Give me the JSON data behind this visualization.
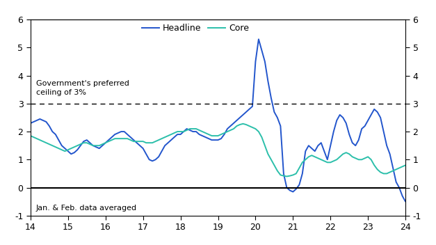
{
  "headline_color": "#2255cc",
  "core_color": "#2bbfaa",
  "dashed_line_y": 3,
  "annotation_ceiling": "Government's preferred\nceiling of 3%",
  "annotation_bottom": "Jan. & Feb. data averaged",
  "xlim": [
    14,
    24
  ],
  "ylim": [
    -1,
    6
  ],
  "yticks": [
    -1,
    0,
    1,
    2,
    3,
    4,
    5,
    6
  ],
  "xticks": [
    14,
    15,
    16,
    17,
    18,
    19,
    20,
    21,
    22,
    23,
    24
  ],
  "legend_labels": [
    "Headline",
    "Core"
  ],
  "headline_x": [
    14.0,
    14.083,
    14.167,
    14.25,
    14.333,
    14.417,
    14.5,
    14.583,
    14.667,
    14.75,
    14.833,
    14.917,
    15.0,
    15.083,
    15.167,
    15.25,
    15.333,
    15.417,
    15.5,
    15.583,
    15.667,
    15.75,
    15.833,
    15.917,
    16.0,
    16.083,
    16.167,
    16.25,
    16.333,
    16.417,
    16.5,
    16.583,
    16.667,
    16.75,
    16.833,
    16.917,
    17.0,
    17.083,
    17.167,
    17.25,
    17.333,
    17.417,
    17.5,
    17.583,
    17.667,
    17.75,
    17.833,
    17.917,
    18.0,
    18.083,
    18.167,
    18.25,
    18.333,
    18.417,
    18.5,
    18.583,
    18.667,
    18.75,
    18.833,
    18.917,
    19.0,
    19.083,
    19.167,
    19.25,
    19.333,
    19.417,
    19.5,
    19.583,
    19.667,
    19.75,
    19.833,
    19.917,
    20.0,
    20.083,
    20.167,
    20.25,
    20.333,
    20.417,
    20.5,
    20.583,
    20.667,
    20.75,
    20.833,
    20.917,
    21.0,
    21.083,
    21.167,
    21.25,
    21.333,
    21.417,
    21.5,
    21.583,
    21.667,
    21.75,
    21.833,
    21.917,
    22.0,
    22.083,
    22.167,
    22.25,
    22.333,
    22.417,
    22.5,
    22.583,
    22.667,
    22.75,
    22.833,
    22.917,
    23.0,
    23.083,
    23.167,
    23.25,
    23.333,
    23.417,
    23.5,
    23.583,
    23.667,
    23.75,
    23.833,
    23.917,
    24.0,
    24.083
  ],
  "headline_y": [
    2.3,
    2.35,
    2.4,
    2.45,
    2.4,
    2.35,
    2.2,
    2.0,
    1.9,
    1.7,
    1.5,
    1.4,
    1.3,
    1.2,
    1.25,
    1.35,
    1.5,
    1.65,
    1.7,
    1.6,
    1.5,
    1.45,
    1.4,
    1.5,
    1.6,
    1.7,
    1.8,
    1.9,
    1.95,
    2.0,
    2.0,
    1.9,
    1.8,
    1.7,
    1.6,
    1.5,
    1.4,
    1.2,
    1.0,
    0.95,
    1.0,
    1.1,
    1.3,
    1.5,
    1.6,
    1.7,
    1.8,
    1.9,
    1.9,
    2.0,
    2.1,
    2.05,
    2.0,
    2.0,
    1.9,
    1.85,
    1.8,
    1.75,
    1.7,
    1.7,
    1.7,
    1.75,
    1.9,
    2.1,
    2.2,
    2.3,
    2.4,
    2.5,
    2.6,
    2.7,
    2.8,
    2.9,
    4.5,
    5.3,
    4.9,
    4.5,
    3.8,
    3.2,
    2.7,
    2.5,
    2.2,
    0.5,
    0.0,
    -0.1,
    -0.15,
    -0.05,
    0.1,
    0.5,
    1.3,
    1.5,
    1.4,
    1.3,
    1.5,
    1.6,
    1.3,
    1.0,
    1.5,
    2.0,
    2.4,
    2.6,
    2.5,
    2.3,
    1.9,
    1.6,
    1.5,
    1.7,
    2.1,
    2.2,
    2.4,
    2.6,
    2.8,
    2.7,
    2.5,
    2.0,
    1.5,
    1.2,
    0.7,
    0.2,
    0.0,
    -0.3,
    -0.5,
    -0.1
  ],
  "core_x": [
    14.0,
    14.083,
    14.167,
    14.25,
    14.333,
    14.417,
    14.5,
    14.583,
    14.667,
    14.75,
    14.833,
    14.917,
    15.0,
    15.083,
    15.167,
    15.25,
    15.333,
    15.417,
    15.5,
    15.583,
    15.667,
    15.75,
    15.833,
    15.917,
    16.0,
    16.083,
    16.167,
    16.25,
    16.333,
    16.417,
    16.5,
    16.583,
    16.667,
    16.75,
    16.833,
    16.917,
    17.0,
    17.083,
    17.167,
    17.25,
    17.333,
    17.417,
    17.5,
    17.583,
    17.667,
    17.75,
    17.833,
    17.917,
    18.0,
    18.083,
    18.167,
    18.25,
    18.333,
    18.417,
    18.5,
    18.583,
    18.667,
    18.75,
    18.833,
    18.917,
    19.0,
    19.083,
    19.167,
    19.25,
    19.333,
    19.417,
    19.5,
    19.583,
    19.667,
    19.75,
    19.833,
    19.917,
    20.0,
    20.083,
    20.167,
    20.25,
    20.333,
    20.417,
    20.5,
    20.583,
    20.667,
    20.75,
    20.833,
    20.917,
    21.0,
    21.083,
    21.167,
    21.25,
    21.333,
    21.417,
    21.5,
    21.583,
    21.667,
    21.75,
    21.833,
    21.917,
    22.0,
    22.083,
    22.167,
    22.25,
    22.333,
    22.417,
    22.5,
    22.583,
    22.667,
    22.75,
    22.833,
    22.917,
    23.0,
    23.083,
    23.167,
    23.25,
    23.333,
    23.417,
    23.5,
    23.583,
    23.667,
    23.75,
    23.833,
    23.917,
    24.0,
    24.083
  ],
  "core_y": [
    1.85,
    1.8,
    1.75,
    1.7,
    1.65,
    1.6,
    1.55,
    1.5,
    1.45,
    1.4,
    1.35,
    1.3,
    1.35,
    1.4,
    1.45,
    1.5,
    1.55,
    1.6,
    1.6,
    1.55,
    1.5,
    1.5,
    1.5,
    1.55,
    1.6,
    1.65,
    1.7,
    1.75,
    1.75,
    1.75,
    1.75,
    1.75,
    1.7,
    1.65,
    1.65,
    1.65,
    1.65,
    1.6,
    1.6,
    1.6,
    1.65,
    1.7,
    1.75,
    1.8,
    1.85,
    1.9,
    1.95,
    2.0,
    2.0,
    2.0,
    2.05,
    2.1,
    2.1,
    2.1,
    2.05,
    2.0,
    1.95,
    1.9,
    1.85,
    1.85,
    1.85,
    1.9,
    1.95,
    2.0,
    2.05,
    2.1,
    2.2,
    2.25,
    2.28,
    2.25,
    2.2,
    2.15,
    2.1,
    2.0,
    1.8,
    1.5,
    1.2,
    1.0,
    0.8,
    0.6,
    0.45,
    0.42,
    0.4,
    0.42,
    0.45,
    0.5,
    0.7,
    0.9,
    1.0,
    1.1,
    1.15,
    1.1,
    1.05,
    1.0,
    0.95,
    0.9,
    0.9,
    0.95,
    1.0,
    1.1,
    1.2,
    1.25,
    1.2,
    1.1,
    1.05,
    1.0,
    1.0,
    1.05,
    1.1,
    1.0,
    0.8,
    0.65,
    0.55,
    0.5,
    0.5,
    0.55,
    0.6,
    0.65,
    0.7,
    0.75,
    0.8,
    0.75
  ]
}
